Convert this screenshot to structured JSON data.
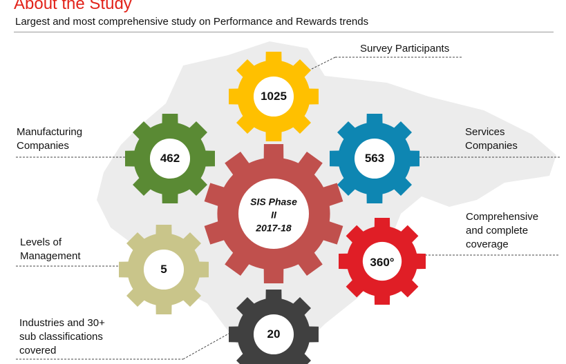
{
  "header": {
    "title": "About the Study",
    "subtitle": "Largest and most comprehensive study on Performance and Rewards trends"
  },
  "center": {
    "line1": "SIS Phase",
    "line2": "II",
    "line3": "2017-18",
    "color": "#c0504d"
  },
  "gears": {
    "participants": {
      "value": "1025",
      "label": "Survey Participants",
      "color": "#ffc000"
    },
    "manufacturing": {
      "value": "462",
      "label_line1": "Manufacturing",
      "label_line2": "Companies",
      "color": "#5a8a34"
    },
    "services": {
      "value": "563",
      "label_line1": "Services",
      "label_line2": "Companies",
      "color": "#0e86b2"
    },
    "levels": {
      "value": "5",
      "label_line1": "Levels of",
      "label_line2": "Management",
      "color": "#c9c58a"
    },
    "coverage": {
      "value": "360°",
      "label_line1": "Comprehensive",
      "label_line2": "and complete",
      "label_line3": "coverage",
      "color": "#e01e26"
    },
    "industries": {
      "value": "20",
      "label_line1": "Industries and 30+",
      "label_line2": "sub classifications",
      "label_line3": "covered",
      "color": "#404040"
    }
  },
  "colors": {
    "accent": "#e2231a",
    "map": "#ececec"
  }
}
